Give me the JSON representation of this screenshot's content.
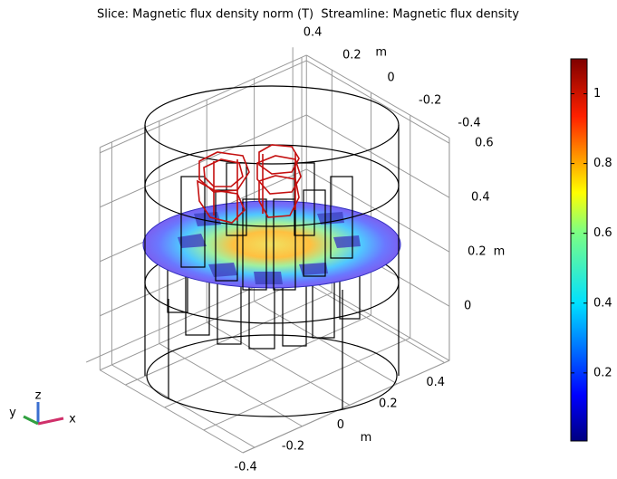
{
  "chart_data": {
    "type": "slice3d",
    "title": "Slice: Magnetic flux density norm (T)  Streamline: Magnetic flux density",
    "x_axis": {
      "label": "m",
      "ticks": [
        -0.4,
        -0.2,
        0,
        0.2,
        0.4
      ]
    },
    "y_axis": {
      "label": "m",
      "ticks": [
        0.4,
        0.2,
        0,
        -0.2,
        -0.4
      ]
    },
    "z_axis": {
      "label": "m",
      "ticks": [
        0,
        0.2,
        0.4,
        0.6
      ]
    },
    "grid": true,
    "colorbar": {
      "ylim": [
        0.005,
        1.1
      ],
      "yticks": [
        0.2,
        0.4,
        0.6,
        0.8,
        1
      ]
    },
    "axis_triad": {
      "x": "x",
      "y": "y",
      "z": "z"
    }
  }
}
